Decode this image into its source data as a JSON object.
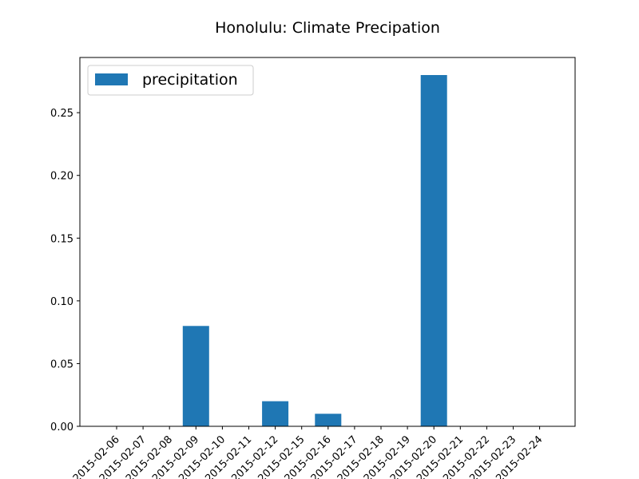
{
  "chart_data": {
    "type": "bar",
    "title": "Honolulu: Climate Precipation",
    "xlabel": "",
    "ylabel": "",
    "categories": [
      "2015-02-06",
      "2015-02-07",
      "2015-02-08",
      "2015-02-09",
      "2015-02-10",
      "2015-02-11",
      "2015-02-12",
      "2015-02-15",
      "2015-02-16",
      "2015-02-17",
      "2015-02-18",
      "2015-02-19",
      "2015-02-20",
      "2015-02-21",
      "2015-02-22",
      "2015-02-23",
      "2015-02-24"
    ],
    "series": [
      {
        "name": "precipitation",
        "color": "#1f77b4",
        "values": [
          0,
          0,
          0,
          0.08,
          0,
          0,
          0.02,
          0,
          0.01,
          0,
          0,
          0,
          0.28,
          0,
          0,
          0,
          0
        ]
      }
    ],
    "yticks": [
      "0.00",
      "0.05",
      "0.10",
      "0.15",
      "0.20",
      "0.25"
    ],
    "ylim": [
      0,
      0.294
    ],
    "grid": false,
    "legend_position": "top-left"
  }
}
